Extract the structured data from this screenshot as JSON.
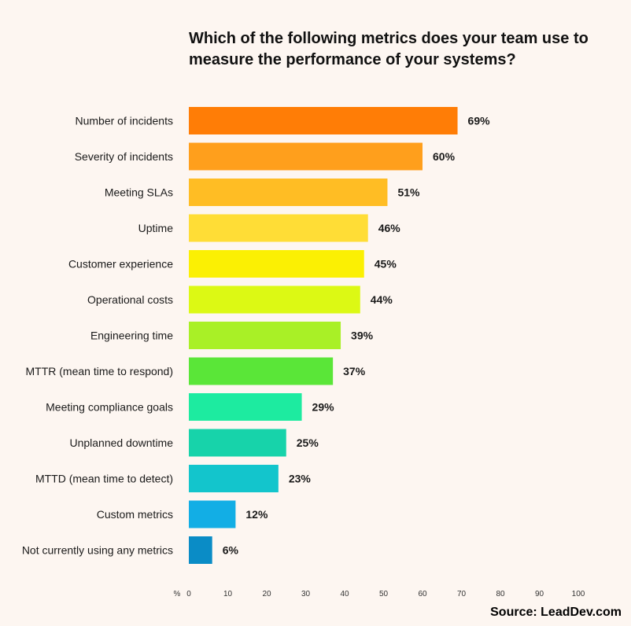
{
  "chart_data": {
    "type": "bar",
    "orientation": "horizontal",
    "title": "Which of the following metrics does your team use to measure the performance of your systems?",
    "categories": [
      "Number of incidents",
      "Severity of incidents",
      "Meeting SLAs",
      "Uptime",
      "Customer experience",
      "Operational costs",
      "Engineering time",
      "MTTR (mean time to respond)",
      "Meeting compliance goals",
      "Unplanned downtime",
      "MTTD (mean time to detect)",
      "Custom metrics",
      "Not currently using any metrics"
    ],
    "values": [
      69,
      60,
      51,
      46,
      45,
      44,
      39,
      37,
      29,
      25,
      23,
      12,
      6
    ],
    "value_labels": [
      "69%",
      "60%",
      "51%",
      "46%",
      "45%",
      "44%",
      "39%",
      "37%",
      "29%",
      "25%",
      "23%",
      "12%",
      "6%"
    ],
    "colors": [
      "#ff7d06",
      "#ff9f1c",
      "#ffbd24",
      "#ffdd36",
      "#fbf003",
      "#dcf914",
      "#a9f026",
      "#5ae638",
      "#1deba0",
      "#17d3aa",
      "#13c5cc",
      "#12aee5",
      "#0a8cc6"
    ],
    "xlabel": "%",
    "xlim": [
      0,
      100
    ],
    "xticks": [
      0,
      10,
      20,
      30,
      40,
      50,
      60,
      70,
      80,
      90,
      100
    ],
    "grid": false
  },
  "source": "Source: LeadDev.com"
}
